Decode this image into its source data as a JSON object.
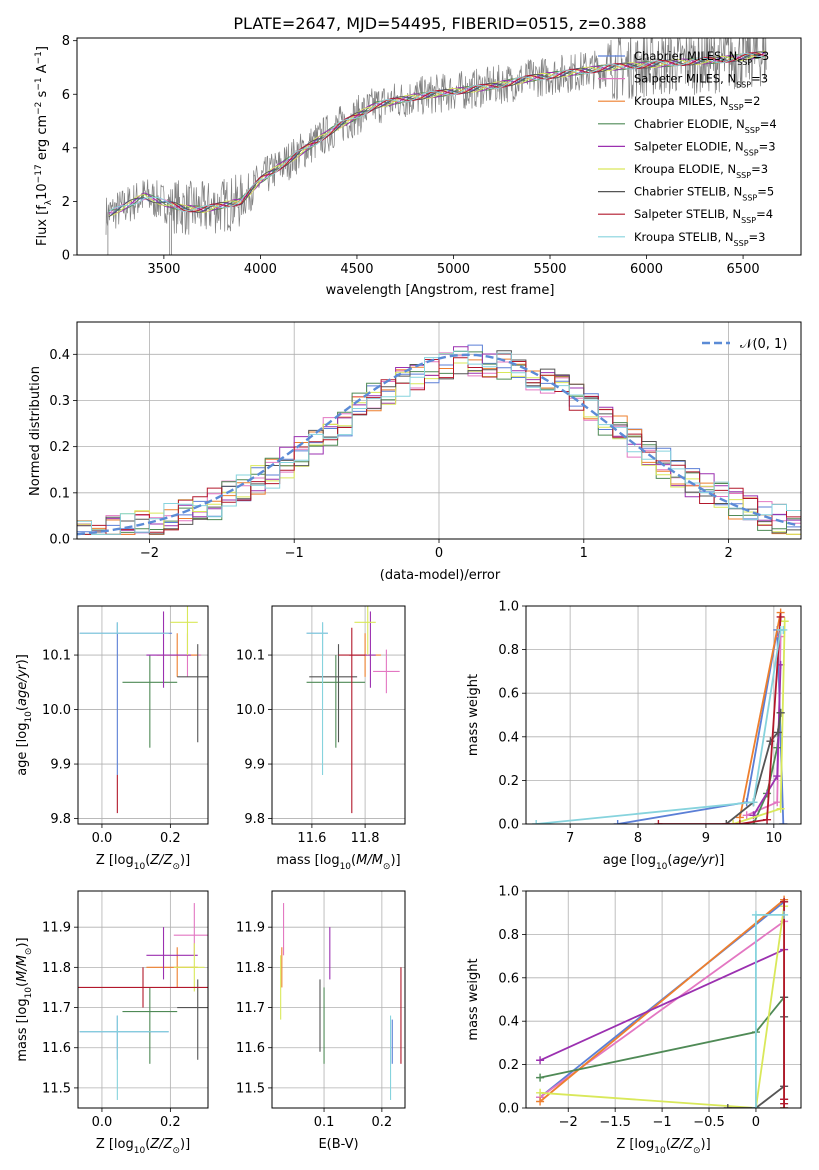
{
  "figure": {
    "title": "PLATE=2647, MJD=54495, FIBERID=0515, z=0.388"
  },
  "colors": {
    "Chabrier MILES": "#5b7fd6",
    "Salpeter MILES": "#e377c2",
    "Kroupa MILES": "#ee7f2d",
    "Chabrier ELODIE": "#4f8a56",
    "Salpeter ELODIE": "#9b30b0",
    "Kroupa ELODIE": "#d9e85a",
    "Chabrier STELIB": "#555555",
    "Salpeter STELIB": "#b2182b",
    "Kroupa STELIB": "#86d3dd"
  },
  "chart_data": [
    {
      "id": "spectrum",
      "type": "line",
      "title": "PLATE=2647, MJD=54495, FIBERID=0515, z=0.388",
      "xlabel": "wavelength [Angstrom, rest frame]",
      "ylabel": "Flux [f_λ 10^-17 erg cm^-2 s^-1 A^-1]",
      "xlim": [
        3050,
        6800
      ],
      "ylim": [
        0,
        8.1
      ],
      "xticks": [
        3500,
        4000,
        4500,
        5000,
        5500,
        6000,
        6500
      ],
      "yticks": [
        0,
        2,
        4,
        6,
        8
      ],
      "legend_position": "upper-right",
      "legend": [
        "Chabrier MILES, N_SSP=3",
        "Salpeter MILES, N_SSP=3",
        "Kroupa MILES, N_SSP=2",
        "Chabrier ELODIE, N_SSP=4",
        "Salpeter ELODIE, N_SSP=3",
        "Kroupa ELODIE, N_SSP=3",
        "Chabrier STELIB, N_SSP=5",
        "Salpeter STELIB, N_SSP=4",
        "Kroupa STELIB, N_SSP=3"
      ],
      "data_wavelength_range": [
        3200,
        6620
      ],
      "continuum_x": [
        3200,
        3280,
        3400,
        3500,
        3600,
        3700,
        3800,
        3900,
        4000,
        4200,
        4400,
        4600,
        4800,
        5000,
        5200,
        5400,
        5600,
        5800,
        6000,
        6200,
        6400,
        6620
      ],
      "continuum_y": [
        1.5,
        1.75,
        2.2,
        1.95,
        1.75,
        1.7,
        1.85,
        2.0,
        2.8,
        3.8,
        4.8,
        5.6,
        5.9,
        6.1,
        6.3,
        6.6,
        6.8,
        7.0,
        7.1,
        7.2,
        7.3,
        7.5
      ],
      "grid": false
    },
    {
      "id": "residuals",
      "type": "histogram",
      "xlabel": "(data-model)/error",
      "ylabel": "Normed distribution",
      "xlim": [
        -2.5,
        2.5
      ],
      "ylim": [
        0,
        0.47
      ],
      "xticks": [
        -2,
        -1,
        0,
        1,
        2
      ],
      "yticks": [
        0.0,
        0.1,
        0.2,
        0.3,
        0.4
      ],
      "legend": [
        "𝒩(0, 1)"
      ],
      "legend_position": "upper-right",
      "gaussian": {
        "mean": 0.2,
        "sigma": 1.0
      },
      "bin_width": 0.1,
      "grid": true
    },
    {
      "id": "age-vs-Z",
      "type": "errorbar",
      "xlabel": "Z [log10(Z/Z⊙)]",
      "ylabel": "age [log10(age/yr)]",
      "xlim": [
        -0.07,
        0.31
      ],
      "ylim": [
        9.79,
        10.19
      ],
      "xticks": [
        0.0,
        0.2
      ],
      "xticklabels": [
        "0.0",
        "0.2"
      ],
      "yticks": [
        9.8,
        9.9,
        10.0,
        10.1
      ],
      "grid": true,
      "points": [
        {
          "model": "Chabrier MILES",
          "x": 0.045,
          "y": 10.14,
          "xerr": [
            0.11,
            0.16
          ],
          "yerr": [
            0.26,
            0.02
          ]
        },
        {
          "model": "Salpeter MILES",
          "x": 0.25,
          "y": 10.1,
          "xerr": [
            0.12,
            0.04
          ],
          "yerr": [
            0.04,
            0.04
          ]
        },
        {
          "model": "Kroupa MILES",
          "x": 0.22,
          "y": 10.1,
          "xerr": [
            0.06,
            0.06
          ],
          "yerr": [
            0.04,
            0.04
          ]
        },
        {
          "model": "Chabrier ELODIE",
          "x": 0.14,
          "y": 10.05,
          "xerr": [
            0.08,
            0.08
          ],
          "yerr": [
            0.12,
            0.05
          ]
        },
        {
          "model": "Salpeter ELODIE",
          "x": 0.18,
          "y": 10.1,
          "xerr": [
            0.05,
            0.08
          ],
          "yerr": [
            0.06,
            0.08
          ]
        },
        {
          "model": "Kroupa ELODIE",
          "x": 0.25,
          "y": 10.16,
          "xerr": [
            0.05,
            0.03
          ],
          "yerr": [
            0.06,
            0.03
          ]
        },
        {
          "model": "Chabrier STELIB",
          "x": 0.28,
          "y": 10.06,
          "xerr": [
            0.06,
            0.03
          ],
          "yerr": [
            0.12,
            0.06
          ]
        },
        {
          "model": "Salpeter STELIB",
          "x": 0.045,
          "y": 9.88,
          "xerr": [
            0.0,
            0.0
          ],
          "yerr": [
            0.07,
            0.0
          ]
        },
        {
          "model": "Kroupa STELIB",
          "x": 0.045,
          "y": 10.14,
          "xerr": [
            0.11,
            0.15
          ],
          "yerr": [
            0.0,
            0.02
          ]
        }
      ]
    },
    {
      "id": "age-vs-mass",
      "type": "errorbar",
      "xlabel": "mass [log10(M/M⊙)]",
      "ylabel": "",
      "xlim": [
        11.45,
        11.95
      ],
      "ylim": [
        9.79,
        10.19
      ],
      "xticks": [
        11.6,
        11.8
      ],
      "xticklabels": [
        "11.6",
        "11.8"
      ],
      "yticks": [
        9.8,
        9.9,
        10.0,
        10.1
      ],
      "grid": true,
      "points": [
        {
          "model": "Chabrier MILES",
          "x": 11.64,
          "y": 10.14,
          "xerr": [
            0.06,
            0.02
          ],
          "yerr": [
            0.04,
            0.02
          ]
        },
        {
          "model": "Salpeter MILES",
          "x": 11.88,
          "y": 10.07,
          "xerr": [
            0.05,
            0.05
          ],
          "yerr": [
            0.04,
            0.04
          ]
        },
        {
          "model": "Kroupa MILES",
          "x": 11.8,
          "y": 10.1,
          "xerr": [
            0.06,
            0.06
          ],
          "yerr": [
            0.04,
            0.04
          ]
        },
        {
          "model": "Chabrier ELODIE",
          "x": 11.69,
          "y": 10.05,
          "xerr": [
            0.11,
            0.11
          ],
          "yerr": [
            0.12,
            0.05
          ]
        },
        {
          "model": "Salpeter ELODIE",
          "x": 11.82,
          "y": 10.1,
          "xerr": [
            0.08,
            0.02
          ],
          "yerr": [
            0.06,
            0.08
          ]
        },
        {
          "model": "Kroupa ELODIE",
          "x": 11.81,
          "y": 10.16,
          "xerr": [
            0.05,
            0.03
          ],
          "yerr": [
            0.06,
            0.03
          ]
        },
        {
          "model": "Chabrier STELIB",
          "x": 11.7,
          "y": 10.06,
          "xerr": [
            0.11,
            0.07
          ],
          "yerr": [
            0.12,
            0.06
          ]
        },
        {
          "model": "Salpeter STELIB",
          "x": 11.75,
          "y": 10.1,
          "xerr": [
            0.05,
            0.05
          ],
          "yerr": [
            0.29,
            0.05
          ]
        },
        {
          "model": "Kroupa STELIB",
          "x": 11.64,
          "y": 10.14,
          "xerr": [
            0.06,
            0.02
          ],
          "yerr": [
            0.26,
            0.02
          ]
        }
      ]
    },
    {
      "id": "weight-vs-age",
      "type": "line",
      "xlabel": "age [log10(age/yr)]",
      "ylabel": "mass weight",
      "xlim": [
        6.35,
        10.4
      ],
      "ylim": [
        0,
        1.0
      ],
      "xticks": [
        7,
        8,
        9,
        10
      ],
      "yticks": [
        0.0,
        0.2,
        0.4,
        0.6,
        0.8,
        1.0
      ],
      "grid": true,
      "series": [
        {
          "model": "Chabrier MILES",
          "x": [
            7.7,
            9.6,
            10.05,
            10.14
          ],
          "y": [
            0.0,
            0.1,
            0.89,
            0.0
          ]
        },
        {
          "model": "Salpeter MILES",
          "x": [
            9.6,
            10.05,
            10.1
          ],
          "y": [
            0.04,
            0.1,
            0.86
          ]
        },
        {
          "model": "Kroupa MILES",
          "x": [
            9.5,
            10.1
          ],
          "y": [
            0.03,
            0.97
          ]
        },
        {
          "model": "Chabrier ELODIE",
          "x": [
            9.7,
            9.9,
            10.05,
            10.1
          ],
          "y": [
            0.0,
            0.14,
            0.35,
            0.51
          ]
        },
        {
          "model": "Salpeter ELODIE",
          "x": [
            9.7,
            10.05,
            10.1
          ],
          "y": [
            0.04,
            0.22,
            0.73
          ]
        },
        {
          "model": "Kroupa ELODIE",
          "x": [
            9.4,
            10.1,
            10.16
          ],
          "y": [
            0.0,
            0.07,
            0.93
          ]
        },
        {
          "model": "Chabrier STELIB",
          "x": [
            9.3,
            9.7,
            9.95,
            10.06,
            10.1
          ],
          "y": [
            0.0,
            0.1,
            0.38,
            0.42,
            0.51
          ]
        },
        {
          "model": "Salpeter STELIB",
          "x": [
            8.3,
            9.5,
            9.9,
            10.1
          ],
          "y": [
            0.0,
            0.0,
            0.02,
            0.95
          ]
        },
        {
          "model": "Kroupa STELIB",
          "x": [
            6.5,
            9.7,
            10.1,
            10.14
          ],
          "y": [
            0.0,
            0.1,
            0.89,
            0.89
          ]
        }
      ]
    },
    {
      "id": "mass-vs-Z",
      "type": "errorbar",
      "xlabel": "Z [log10(Z/Z⊙)]",
      "ylabel": "mass [log10(M/M⊙)]",
      "xlim": [
        -0.07,
        0.31
      ],
      "ylim": [
        11.45,
        11.99
      ],
      "xticks": [
        0.0,
        0.2
      ],
      "xticklabels": [
        "0.0",
        "0.2"
      ],
      "yticks": [
        11.5,
        11.6,
        11.7,
        11.8,
        11.9
      ],
      "grid": true,
      "points": [
        {
          "model": "Chabrier MILES",
          "x": 0.045,
          "y": 11.64,
          "xerr": [
            0.11,
            0.15
          ],
          "yerr": [
            0.07,
            0.04
          ]
        },
        {
          "model": "Salpeter MILES",
          "x": 0.27,
          "y": 11.88,
          "xerr": [
            0.06,
            0.04
          ],
          "yerr": [
            0.05,
            0.08
          ]
        },
        {
          "model": "Kroupa MILES",
          "x": 0.22,
          "y": 11.8,
          "xerr": [
            0.09,
            0.06
          ],
          "yerr": [
            0.05,
            0.05
          ]
        },
        {
          "model": "Chabrier ELODIE",
          "x": 0.14,
          "y": 11.69,
          "xerr": [
            0.08,
            0.08
          ],
          "yerr": [
            0.13,
            0.06
          ]
        },
        {
          "model": "Salpeter ELODIE",
          "x": 0.18,
          "y": 11.83,
          "xerr": [
            0.05,
            0.1
          ],
          "yerr": [
            0.06,
            0.07
          ]
        },
        {
          "model": "Kroupa ELODIE",
          "x": 0.27,
          "y": 11.8,
          "xerr": [
            0.06,
            0.03
          ],
          "yerr": [
            0.06,
            0.06
          ]
        },
        {
          "model": "Chabrier STELIB",
          "x": 0.28,
          "y": 11.7,
          "xerr": [
            0.06,
            0.03
          ],
          "yerr": [
            0.13,
            0.07
          ]
        },
        {
          "model": "Salpeter STELIB",
          "x": 0.12,
          "y": 11.75,
          "xerr": [
            0.2,
            0.2
          ],
          "yerr": [
            0.05,
            0.05
          ]
        },
        {
          "model": "Kroupa STELIB",
          "x": 0.045,
          "y": 11.64,
          "xerr": [
            0.11,
            0.15
          ],
          "yerr": [
            0.17,
            0.04
          ]
        }
      ]
    },
    {
      "id": "mass-vs-EBV",
      "type": "errorbar",
      "xlabel": "E(B-V)",
      "ylabel": "",
      "xlim": [
        0.01,
        0.24
      ],
      "ylim": [
        11.45,
        11.99
      ],
      "xticks": [
        0.1,
        0.2
      ],
      "xticklabels": [
        "0.1",
        "0.2"
      ],
      "yticks": [
        11.5,
        11.6,
        11.7,
        11.8,
        11.9
      ],
      "grid": true,
      "points": [
        {
          "model": "Chabrier MILES",
          "x": 0.218,
          "y": 11.63,
          "xerr": [
            0,
            0
          ],
          "yerr": [
            0.07,
            0.04
          ]
        },
        {
          "model": "Salpeter MILES",
          "x": 0.03,
          "y": 11.88,
          "xerr": [
            0,
            0
          ],
          "yerr": [
            0.05,
            0.08
          ]
        },
        {
          "model": "Kroupa MILES",
          "x": 0.027,
          "y": 11.8,
          "xerr": [
            0,
            0
          ],
          "yerr": [
            0.05,
            0.05
          ]
        },
        {
          "model": "Chabrier ELODIE",
          "x": 0.1,
          "y": 11.69,
          "xerr": [
            0,
            0
          ],
          "yerr": [
            0.13,
            0.06
          ]
        },
        {
          "model": "Salpeter ELODIE",
          "x": 0.11,
          "y": 11.83,
          "xerr": [
            0,
            0
          ],
          "yerr": [
            0.06,
            0.07
          ]
        },
        {
          "model": "Kroupa ELODIE",
          "x": 0.025,
          "y": 11.77,
          "xerr": [
            0,
            0
          ],
          "yerr": [
            0.1,
            0.06
          ]
        },
        {
          "model": "Chabrier STELIB",
          "x": 0.093,
          "y": 11.68,
          "xerr": [
            0,
            0
          ],
          "yerr": [
            0.09,
            0.09
          ]
        },
        {
          "model": "Salpeter STELIB",
          "x": 0.233,
          "y": 11.68,
          "xerr": [
            0,
            0
          ],
          "yerr": [
            0.12,
            0.12
          ]
        },
        {
          "model": "Kroupa STELIB",
          "x": 0.215,
          "y": 11.58,
          "xerr": [
            0,
            0
          ],
          "yerr": [
            0.11,
            0.1
          ]
        }
      ]
    },
    {
      "id": "weight-vs-Z",
      "type": "line",
      "xlabel": "Z [log10(Z/Z⊙)]",
      "ylabel": "mass weight",
      "xlim": [
        -2.45,
        0.48
      ],
      "ylim": [
        0,
        1.0
      ],
      "xticks": [
        -2.0,
        -1.5,
        -1.0,
        -0.5,
        0.0
      ],
      "yticks": [
        0.0,
        0.2,
        0.4,
        0.6,
        0.8,
        1.0
      ],
      "grid": true,
      "series": [
        {
          "model": "Chabrier MILES",
          "x": [
            -2.3,
            0.3
          ],
          "y": [
            0.05,
            0.95
          ]
        },
        {
          "model": "Salpeter MILES",
          "x": [
            -2.3,
            0.3,
            0.3
          ],
          "y": [
            0.05,
            0.86,
            0.1
          ]
        },
        {
          "model": "Kroupa MILES",
          "x": [
            -2.3,
            0.3
          ],
          "y": [
            0.03,
            0.96
          ]
        },
        {
          "model": "Chabrier ELODIE",
          "x": [
            -2.3,
            0.0,
            0.3
          ],
          "y": [
            0.14,
            0.35,
            0.51
          ]
        },
        {
          "model": "Salpeter ELODIE",
          "x": [
            -2.3,
            0.3,
            0.3
          ],
          "y": [
            0.22,
            0.73,
            0.04
          ]
        },
        {
          "model": "Kroupa ELODIE",
          "x": [
            -2.3,
            0.0,
            0.3,
            0.3
          ],
          "y": [
            0.07,
            0.0,
            0.93,
            0.0
          ]
        },
        {
          "model": "Chabrier STELIB",
          "x": [
            -0.3,
            0.0,
            0.3,
            0.3,
            0.3
          ],
          "y": [
            0.0,
            0.0,
            0.1,
            0.42,
            0.51
          ]
        },
        {
          "model": "Salpeter STELIB",
          "x": [
            0.3,
            0.3,
            0.3,
            0.3
          ],
          "y": [
            0.0,
            0.02,
            0.04,
            0.95
          ]
        },
        {
          "model": "Kroupa STELIB",
          "x": [
            0.0,
            0.0,
            0.3
          ],
          "y": [
            0.0,
            0.89,
            0.89
          ]
        }
      ]
    }
  ]
}
